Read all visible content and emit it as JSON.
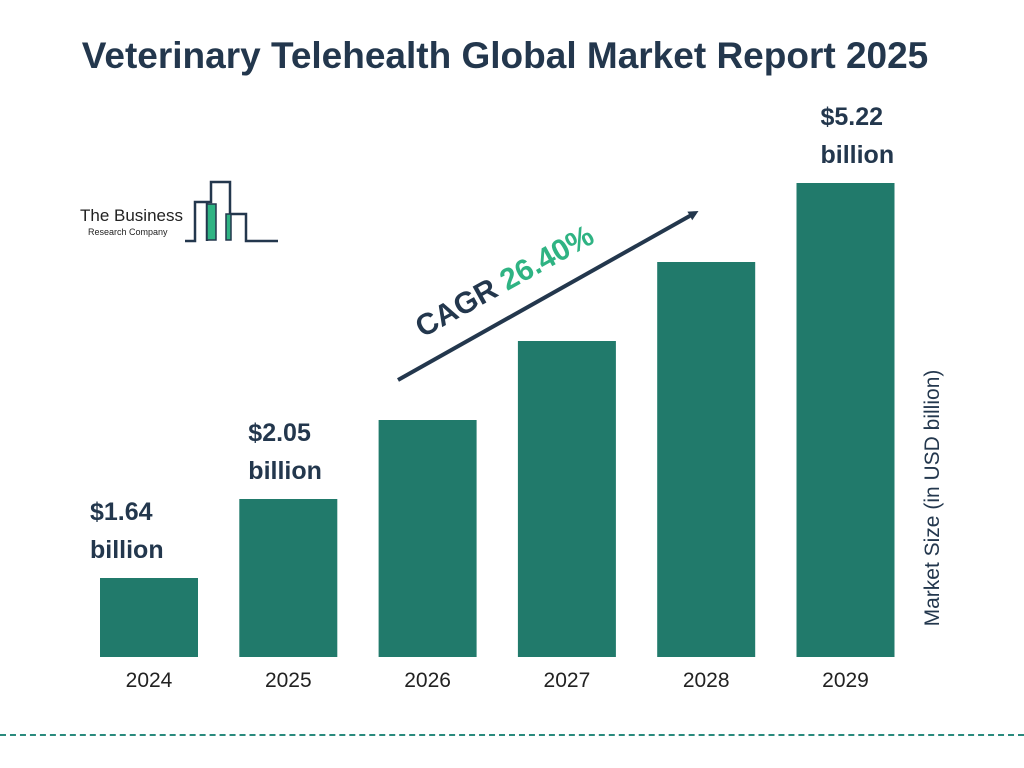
{
  "title": "Veterinary Telehealth Global Market Report 2025",
  "logo": {
    "line1": "The Business",
    "line2": "Research Company"
  },
  "cagr": {
    "label": "CAGR",
    "value": "26.40%"
  },
  "colors": {
    "bar": "#217a6b",
    "title": "#23374d",
    "accent": "#2fb383",
    "dash": "#2a8a7d"
  },
  "chart_data": {
    "type": "bar",
    "title": "Veterinary Telehealth Global Market Report 2025",
    "xlabel": "",
    "ylabel": "Market Size (in USD billion)",
    "categories": [
      "2024",
      "2025",
      "2026",
      "2027",
      "2028",
      "2029"
    ],
    "values": [
      1.64,
      2.05,
      2.59,
      3.28,
      4.14,
      5.22
    ],
    "data_labels": [
      {
        "category": "2024",
        "line1": "$1.64",
        "line2": "billion"
      },
      {
        "category": "2025",
        "line1": "$2.05",
        "line2": "billion"
      },
      {
        "category": "2029",
        "line1": "$5.22",
        "line2": "billion"
      }
    ],
    "grid": false,
    "legend": "none"
  }
}
